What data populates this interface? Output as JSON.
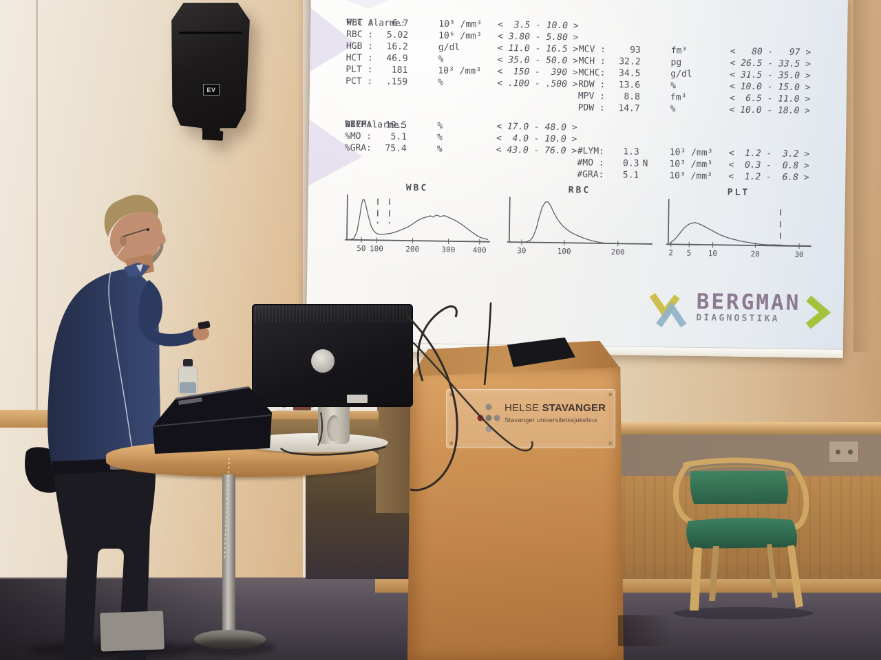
{
  "colors": {
    "slide-text": "#4e4e58",
    "bergman-purple": "#8d7a90",
    "bergman-yellow": "#cec04e",
    "bergman-blue": "#90b0c6",
    "bergman-green": "#a5c23d",
    "helse-text": "#46342e",
    "helse-red": "#8b2a2a",
    "chair-green": "#2f6e52",
    "chair-wood": "#cfa765",
    "shirt-navy": "#2e3a57",
    "carpet": "#4e4652"
  },
  "slide": {
    "sections": [
      {
        "title": "PLT Alarme:",
        "left": [
          {
            "label": "WBC :",
            "value": "6.7",
            "flag": "",
            "unit": "10³ /mm³",
            "range": "<  3.5 - 10.0 >"
          },
          {
            "label": "RBC :",
            "value": "5.02",
            "flag": "",
            "unit": "10⁶ /mm³",
            "range": "< 3.80 - 5.80 >"
          },
          {
            "label": "HGB :",
            "value": "16.2",
            "flag": "",
            "unit": "g/dl",
            "range": "< 11.0 - 16.5 >"
          },
          {
            "label": "HCT :",
            "value": "46.9",
            "flag": "",
            "unit": "%",
            "range": "< 35.0 - 50.0 >"
          },
          {
            "label": "PLT :",
            "value": "181",
            "flag": "",
            "unit": "10³ /mm³",
            "range": "<  150 -  390 >"
          },
          {
            "label": "PCT :",
            "value": ".159",
            "flag": "",
            "unit": "%",
            "range": "< .100 - .500 >"
          }
        ],
        "right": [
          {
            "label": "MCV :",
            "value": "93",
            "flag": "",
            "unit": "fm³",
            "range": "<   80 -   97 >"
          },
          {
            "label": "MCH :",
            "value": "32.2",
            "flag": "",
            "unit": "pg",
            "range": "< 26.5 - 33.5 >"
          },
          {
            "label": "MCHC:",
            "value": "34.5",
            "flag": "",
            "unit": "g/dl",
            "range": "< 31.5 - 35.0 >"
          },
          {
            "label": "RDW :",
            "value": "13.6",
            "flag": "",
            "unit": "%",
            "range": "< 10.0 - 15.0 >"
          },
          {
            "label": "MPV :",
            "value": "8.8",
            "flag": "",
            "unit": "fm³",
            "range": "<  6.5 - 11.0 >"
          },
          {
            "label": "PDW :",
            "value": "14.7",
            "flag": "",
            "unit": "%",
            "range": "< 10.0 - 18.0 >"
          }
        ]
      },
      {
        "title": "WBC Alarme:",
        "subtitle": "DIFF :",
        "left": [
          {
            "label": "%LYM:",
            "value": "19.5",
            "flag": "",
            "unit": "%",
            "range": "< 17.0 - 48.0 >"
          },
          {
            "label": "%MO :",
            "value": "5.1",
            "flag": "",
            "unit": "%",
            "range": "<  4.0 - 10.0 >"
          },
          {
            "label": "%GRA:",
            "value": "75.4",
            "flag": "",
            "unit": "%",
            "range": "< 43.0 - 76.0 >"
          }
        ],
        "right": [
          {
            "label": "#LYM:",
            "value": "1.3",
            "flag": "",
            "unit": "10³ /mm³",
            "range": "<  1.2 -  3.2 >"
          },
          {
            "label": "#MO :",
            "value": "0.3",
            "flag": "N",
            "unit": "10³ /mm³",
            "range": "<  0.3 -  0.8 >"
          },
          {
            "label": "#GRA:",
            "value": "5.1",
            "flag": "",
            "unit": "10³ /mm³",
            "range": "<  1.2 -  6.8 >"
          }
        ]
      }
    ],
    "logo": {
      "brand": "BERGMAN",
      "sub": "DIAGNOSTIKA"
    }
  },
  "chart_data": [
    {
      "type": "histogram",
      "title": "WBC",
      "x_ticks": [
        {
          "label": "50",
          "pos": 0.103
        },
        {
          "label": "100",
          "pos": 0.211
        },
        {
          "label": "200",
          "pos": 0.466
        },
        {
          "label": "300",
          "pos": 0.72
        },
        {
          "label": "400",
          "pos": 0.941
        }
      ],
      "dashed_lines": [
        {
          "pos": 0.216,
          "from": 0.05,
          "to": 0.62
        },
        {
          "pos": 0.299,
          "from": 0.05,
          "to": 0.62
        }
      ],
      "points": [
        [
          0,
          100
        ],
        [
          3,
          99
        ],
        [
          5,
          96
        ],
        [
          7,
          82
        ],
        [
          9,
          45
        ],
        [
          10,
          20
        ],
        [
          11,
          8
        ],
        [
          12,
          9
        ],
        [
          13,
          20
        ],
        [
          15,
          46
        ],
        [
          17,
          68
        ],
        [
          19,
          79
        ],
        [
          21,
          85
        ],
        [
          24,
          87
        ],
        [
          27,
          86
        ],
        [
          31,
          84
        ],
        [
          35,
          80
        ],
        [
          39,
          75
        ],
        [
          43,
          69
        ],
        [
          47,
          61
        ],
        [
          50,
          54
        ],
        [
          53,
          49
        ],
        [
          56,
          46
        ],
        [
          59,
          43
        ],
        [
          61,
          46
        ],
        [
          63,
          41
        ],
        [
          66,
          44
        ],
        [
          69,
          42
        ],
        [
          72,
          46
        ],
        [
          75,
          50
        ],
        [
          78,
          55
        ],
        [
          81,
          61
        ],
        [
          84,
          68
        ],
        [
          87,
          75
        ],
        [
          90,
          82
        ],
        [
          93,
          88
        ],
        [
          96,
          92
        ],
        [
          100,
          95
        ]
      ]
    },
    {
      "type": "histogram",
      "title": "RBC",
      "x_ticks": [
        {
          "label": "30",
          "pos": 0.088
        },
        {
          "label": "100",
          "pos": 0.39
        },
        {
          "label": "200",
          "pos": 0.77
        }
      ],
      "dashed_lines": [],
      "points": [
        [
          0,
          100
        ],
        [
          8,
          100
        ],
        [
          12,
          99
        ],
        [
          15,
          95
        ],
        [
          17,
          86
        ],
        [
          19,
          68
        ],
        [
          21,
          42
        ],
        [
          23,
          20
        ],
        [
          25,
          9
        ],
        [
          27,
          7
        ],
        [
          29,
          16
        ],
        [
          31,
          30
        ],
        [
          34,
          47
        ],
        [
          37,
          59
        ],
        [
          40,
          68
        ],
        [
          43,
          75
        ],
        [
          46,
          80
        ],
        [
          49,
          84
        ],
        [
          52,
          88
        ],
        [
          55,
          91
        ],
        [
          58,
          94
        ],
        [
          61,
          96
        ],
        [
          64,
          98
        ],
        [
          67,
          99
        ],
        [
          72,
          100
        ],
        [
          100,
          100
        ]
      ]
    },
    {
      "type": "histogram",
      "title": "PLT",
      "x_ticks": [
        {
          "label": "2",
          "pos": 0.019
        },
        {
          "label": "5",
          "pos": 0.148
        },
        {
          "label": "10",
          "pos": 0.316
        },
        {
          "label": "20",
          "pos": 0.617
        },
        {
          "label": "30",
          "pos": 0.928
        }
      ],
      "dashed_lines": [
        {
          "pos": 0.794,
          "from": 0.17,
          "to": 1.0
        }
      ],
      "points": [
        [
          1,
          98
        ],
        [
          3,
          93
        ],
        [
          5,
          87
        ],
        [
          7,
          79
        ],
        [
          9,
          71
        ],
        [
          11,
          63
        ],
        [
          13,
          57
        ],
        [
          15,
          53
        ],
        [
          17,
          51
        ],
        [
          19,
          50
        ],
        [
          21,
          52
        ],
        [
          24,
          56
        ],
        [
          27,
          61
        ],
        [
          30,
          66
        ],
        [
          33,
          71
        ],
        [
          36,
          76
        ],
        [
          40,
          81
        ],
        [
          44,
          85
        ],
        [
          48,
          88
        ],
        [
          52,
          91
        ],
        [
          56,
          93
        ],
        [
          60,
          95
        ],
        [
          65,
          97
        ],
        [
          70,
          98
        ],
        [
          76,
          98
        ],
        [
          85,
          99
        ],
        [
          100,
          99
        ]
      ]
    }
  ],
  "podium": {
    "org": "HELSE",
    "org_bold": "STAVANGER",
    "subtitle": "Stavanger universitetssjukehus"
  },
  "speaker": {
    "brand": "EV"
  }
}
